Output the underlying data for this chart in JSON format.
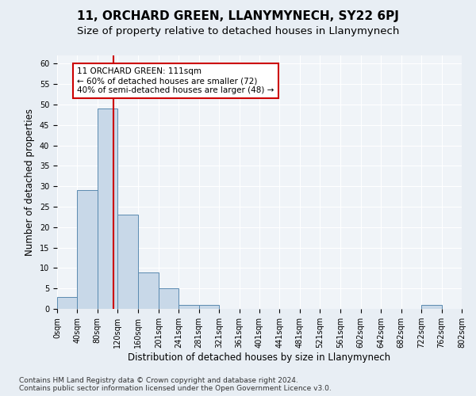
{
  "title": "11, ORCHARD GREEN, LLANYMYNECH, SY22 6PJ",
  "subtitle": "Size of property relative to detached houses in Llanymynech",
  "xlabel": "Distribution of detached houses by size in Llanymynech",
  "ylabel": "Number of detached properties",
  "footnote": "Contains HM Land Registry data © Crown copyright and database right 2024.\nContains public sector information licensed under the Open Government Licence v3.0.",
  "bin_edges": [
    0,
    40,
    80,
    120,
    160,
    201,
    241,
    281,
    321,
    361,
    401,
    441,
    481,
    521,
    561,
    602,
    642,
    682,
    722,
    762,
    802
  ],
  "bin_labels": [
    "0sqm",
    "40sqm",
    "80sqm",
    "120sqm",
    "160sqm",
    "201sqm",
    "241sqm",
    "281sqm",
    "321sqm",
    "361sqm",
    "401sqm",
    "441sqm",
    "481sqm",
    "521sqm",
    "561sqm",
    "602sqm",
    "642sqm",
    "682sqm",
    "722sqm",
    "762sqm",
    "802sqm"
  ],
  "bar_heights": [
    3,
    29,
    49,
    23,
    9,
    5,
    1,
    1,
    0,
    0,
    0,
    0,
    0,
    0,
    0,
    0,
    0,
    0,
    1,
    0
  ],
  "bar_color": "#c8d8e8",
  "bar_edge_color": "#5a8ab0",
  "property_size": 111,
  "vline_color": "#cc0000",
  "annotation_text": "11 ORCHARD GREEN: 111sqm\n← 60% of detached houses are smaller (72)\n40% of semi-detached houses are larger (48) →",
  "annotation_box_color": "#ffffff",
  "annotation_box_edge": "#cc0000",
  "ylim": [
    0,
    62
  ],
  "yticks": [
    0,
    5,
    10,
    15,
    20,
    25,
    30,
    35,
    40,
    45,
    50,
    55,
    60
  ],
  "bg_color": "#e8eef4",
  "plot_bg_color": "#f0f4f8",
  "grid_color": "#ffffff",
  "title_fontsize": 11,
  "subtitle_fontsize": 9.5,
  "label_fontsize": 8.5,
  "tick_fontsize": 7,
  "footnote_fontsize": 6.5,
  "annotation_fontsize": 7.5
}
